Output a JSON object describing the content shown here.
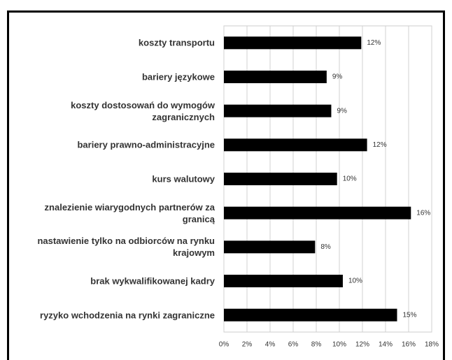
{
  "chart_data": {
    "type": "barh",
    "categories": [
      "koszty transportu",
      "bariery językowe",
      "koszty dostosowań do wymogów zagranicznych",
      "bariery prawno-administracyjne",
      "kurs walutowy",
      "znalezienie wiarygodnych partnerów za granicą",
      "nastawienie tylko na odbiorców na rynku krajowym",
      "brak wykwalifikowanej kadry",
      "ryzyko wchodzenia na rynki zagraniczne"
    ],
    "values": [
      11.9,
      8.9,
      9.3,
      12.4,
      9.8,
      16.2,
      7.9,
      10.3,
      15.0
    ],
    "value_labels": [
      "12%",
      "9%",
      "9%",
      "12%",
      "10%",
      "16%",
      "8%",
      "10%",
      "15%"
    ],
    "color": "#000000",
    "xlim": [
      0,
      18
    ],
    "xticks": [
      {
        "value": 0,
        "label": "0%"
      },
      {
        "value": 2,
        "label": "2%"
      },
      {
        "value": 4,
        "label": "4%"
      },
      {
        "value": 6,
        "label": "6%"
      },
      {
        "value": 8,
        "label": "8%"
      },
      {
        "value": 10,
        "label": "10%"
      },
      {
        "value": 12,
        "label": "12%"
      },
      {
        "value": 14,
        "label": "14%"
      },
      {
        "value": 16,
        "label": "16%"
      },
      {
        "value": 18,
        "label": "18%"
      }
    ],
    "grid": true
  }
}
